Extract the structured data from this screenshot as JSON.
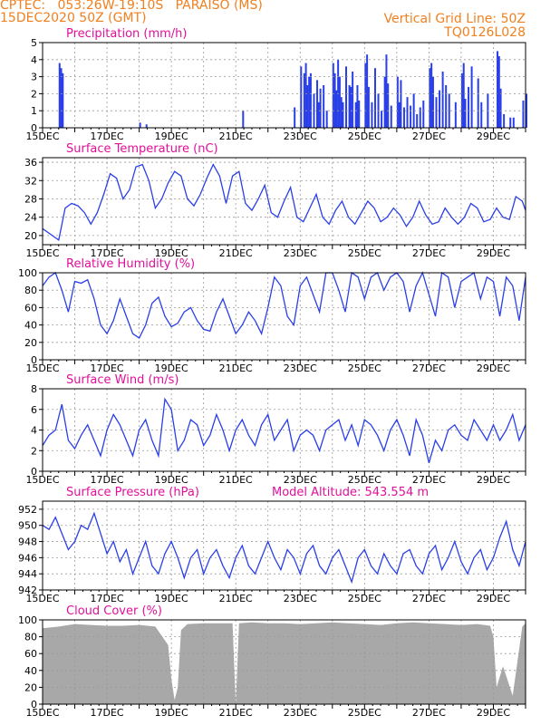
{
  "header": {
    "line1": "CPTEC:   053:26W-19:10S   PARAISO (MS)",
    "line2": "15DEC2020 50Z (GMT)",
    "right1": "Vertical Grid Line: 50Z",
    "right2": "TQ0126L028"
  },
  "colors": {
    "header": "#f08020",
    "title": "#e0109a",
    "line": "#2a3fe8",
    "cloud": "#a8a8a8"
  },
  "chart_data": [
    {
      "type": "bar",
      "title": "Precipitation (mm/h)",
      "xlabels": [
        "15DEC",
        "17DEC",
        "19DEC",
        "21DEC",
        "23DEC",
        "25DEC",
        "27DEC",
        "29DEC"
      ],
      "x_start_label": "15DEC",
      "ylim": [
        0,
        5
      ],
      "yticks": [
        0,
        1,
        2,
        3,
        4,
        5
      ],
      "grid": true,
      "x_days": [
        0.5,
        0.55,
        0.6,
        3.0,
        3.2,
        6.2,
        7.8,
        8.0,
        8.1,
        8.15,
        8.2,
        8.25,
        8.3,
        8.4,
        8.5,
        8.55,
        8.6,
        8.7,
        8.8,
        9.0,
        9.05,
        9.1,
        9.15,
        9.2,
        9.25,
        9.3,
        9.4,
        9.5,
        9.55,
        9.6,
        9.7,
        9.75,
        9.8,
        10.0,
        10.05,
        10.1,
        10.2,
        10.3,
        10.4,
        10.5,
        10.6,
        10.65,
        10.7,
        10.8,
        11.0,
        11.05,
        11.1,
        11.2,
        11.3,
        11.4,
        11.5,
        11.6,
        11.7,
        11.8,
        12.0,
        12.05,
        12.1,
        12.2,
        12.3,
        12.4,
        12.5,
        12.6,
        12.8,
        13.0,
        13.05,
        13.1,
        13.2,
        13.3,
        13.5,
        13.6,
        13.8,
        14.1,
        14.15,
        14.2,
        14.3,
        14.5,
        14.6,
        14.9,
        15.0
      ],
      "values": [
        3.8,
        3.5,
        3.2,
        0.3,
        0.2,
        1.0,
        1.2,
        3.6,
        3.2,
        3.8,
        2.5,
        3.0,
        3.2,
        2.0,
        2.8,
        1.5,
        2.3,
        2.5,
        1.0,
        3.8,
        3.2,
        2.2,
        4.0,
        3.0,
        1.8,
        1.5,
        3.6,
        2.5,
        2.4,
        3.3,
        1.5,
        2.5,
        1.6,
        3.8,
        4.3,
        2.4,
        1.5,
        3.5,
        2.0,
        1.0,
        3.0,
        4.3,
        2.6,
        1.3,
        3.0,
        1.5,
        2.8,
        1.2,
        1.8,
        1.3,
        2.0,
        0.8,
        1.2,
        1.6,
        3.5,
        3.8,
        3.0,
        1.8,
        2.2,
        3.3,
        2.5,
        2.0,
        1.5,
        3.2,
        3.8,
        1.7,
        2.4,
        3.6,
        2.9,
        1.5,
        2.0,
        4.5,
        4.2,
        2.3,
        0.8,
        0.6,
        0.6,
        1.6,
        2.0
      ]
    },
    {
      "type": "line",
      "title": "Surface Temperature (nC)",
      "xlabels": [
        "15DEC",
        "17DEC",
        "19DEC",
        "21DEC",
        "23DEC",
        "25DEC",
        "27DEC",
        "29DEC"
      ],
      "x_start_label": "15DEC",
      "ylim": [
        18,
        37
      ],
      "yticks": [
        20,
        24,
        28,
        32,
        36
      ],
      "grid": true,
      "x_days": [
        0,
        0.3,
        0.5,
        0.7,
        0.9,
        1.1,
        1.3,
        1.5,
        1.7,
        1.9,
        2.1,
        2.3,
        2.5,
        2.7,
        2.9,
        3.1,
        3.3,
        3.5,
        3.7,
        3.9,
        4.1,
        4.3,
        4.5,
        4.7,
        4.9,
        5.1,
        5.3,
        5.5,
        5.7,
        5.9,
        6.1,
        6.3,
        6.5,
        6.7,
        6.9,
        7.1,
        7.3,
        7.5,
        7.7,
        7.9,
        8.1,
        8.3,
        8.5,
        8.7,
        8.9,
        9.1,
        9.3,
        9.5,
        9.7,
        9.9,
        10.1,
        10.3,
        10.5,
        10.7,
        10.9,
        11.1,
        11.3,
        11.5,
        11.7,
        11.9,
        12.1,
        12.3,
        12.5,
        12.7,
        12.9,
        13.1,
        13.3,
        13.5,
        13.7,
        13.9,
        14.1,
        14.3,
        14.5,
        14.7,
        14.9,
        15.0
      ],
      "values": [
        21.5,
        20,
        19,
        26,
        27,
        26.5,
        25,
        22.5,
        25,
        29,
        33.5,
        32.5,
        28,
        30,
        35,
        35.5,
        32,
        26,
        28,
        31.5,
        34,
        33,
        28,
        26.5,
        29,
        32.5,
        35.5,
        33,
        27,
        33,
        34,
        27,
        25.5,
        28,
        31,
        25,
        24,
        27.5,
        30.5,
        24,
        23,
        26,
        29,
        24,
        22.5,
        25.5,
        27.5,
        24,
        22.5,
        25,
        27.5,
        26,
        23,
        24,
        26,
        24.5,
        22,
        24,
        27.5,
        24.5,
        22.5,
        23,
        26,
        24,
        22.5,
        24,
        27,
        26,
        23,
        23.5,
        26,
        24,
        23.5,
        28.5,
        27.5,
        25.5
      ]
    },
    {
      "type": "line",
      "title": "Relative Humidity (%)",
      "xlabels": [
        "15DEC",
        "17DEC",
        "19DEC",
        "21DEC",
        "23DEC",
        "25DEC",
        "27DEC",
        "29DEC"
      ],
      "x_start_label": "15DEC",
      "ylim": [
        0,
        100
      ],
      "yticks": [
        0,
        20,
        40,
        60,
        80,
        100
      ],
      "grid": true,
      "x_days": [
        0,
        0.2,
        0.4,
        0.6,
        0.8,
        1.0,
        1.2,
        1.4,
        1.6,
        1.8,
        2.0,
        2.2,
        2.4,
        2.6,
        2.8,
        3.0,
        3.2,
        3.4,
        3.6,
        3.8,
        4.0,
        4.2,
        4.4,
        4.6,
        4.8,
        5.0,
        5.2,
        5.4,
        5.6,
        5.8,
        6.0,
        6.2,
        6.4,
        6.6,
        6.8,
        7.0,
        7.2,
        7.4,
        7.6,
        7.8,
        8.0,
        8.2,
        8.4,
        8.6,
        8.8,
        9.0,
        9.2,
        9.4,
        9.6,
        9.8,
        10.0,
        10.2,
        10.4,
        10.6,
        10.8,
        11.0,
        11.2,
        11.4,
        11.6,
        11.8,
        12.0,
        12.2,
        12.4,
        12.6,
        12.8,
        13.0,
        13.2,
        13.4,
        13.6,
        13.8,
        14.0,
        14.2,
        14.4,
        14.6,
        14.8,
        15.0
      ],
      "values": [
        85,
        95,
        100,
        80,
        55,
        90,
        88,
        92,
        70,
        40,
        30,
        45,
        70,
        50,
        30,
        25,
        40,
        65,
        72,
        50,
        38,
        42,
        55,
        60,
        45,
        35,
        33,
        55,
        70,
        50,
        30,
        40,
        55,
        45,
        30,
        60,
        95,
        85,
        50,
        40,
        85,
        95,
        75,
        55,
        100,
        100,
        80,
        55,
        100,
        95,
        70,
        95,
        100,
        80,
        95,
        100,
        90,
        55,
        85,
        100,
        75,
        50,
        100,
        95,
        60,
        90,
        95,
        100,
        70,
        95,
        90,
        50,
        95,
        85,
        45,
        95
      ]
    },
    {
      "type": "line",
      "title": "Surface Wind (m/s)",
      "xlabels": [
        "15DEC",
        "17DEC",
        "19DEC",
        "21DEC",
        "23DEC",
        "25DEC",
        "27DEC",
        "29DEC"
      ],
      "x_start_label": "15DEC",
      "ylim": [
        0,
        8
      ],
      "yticks": [
        0,
        2,
        4,
        6,
        8
      ],
      "grid": true,
      "x_days": [
        0,
        0.2,
        0.4,
        0.6,
        0.8,
        1.0,
        1.2,
        1.4,
        1.6,
        1.8,
        2.0,
        2.2,
        2.4,
        2.6,
        2.8,
        3.0,
        3.2,
        3.4,
        3.6,
        3.8,
        4.0,
        4.2,
        4.4,
        4.6,
        4.8,
        5.0,
        5.2,
        5.4,
        5.6,
        5.8,
        6.0,
        6.2,
        6.4,
        6.6,
        6.8,
        7.0,
        7.2,
        7.4,
        7.6,
        7.8,
        8.0,
        8.2,
        8.4,
        8.6,
        8.8,
        9.0,
        9.2,
        9.4,
        9.6,
        9.8,
        10.0,
        10.2,
        10.4,
        10.6,
        10.8,
        11.0,
        11.2,
        11.4,
        11.6,
        11.8,
        12.0,
        12.2,
        12.4,
        12.6,
        12.8,
        13.0,
        13.2,
        13.4,
        13.6,
        13.8,
        14.0,
        14.2,
        14.4,
        14.6,
        14.8,
        15.0
      ],
      "values": [
        2.5,
        3.5,
        4,
        6.5,
        3,
        2.2,
        3.5,
        4.5,
        3,
        1.5,
        4,
        5.5,
        4.5,
        3,
        1.5,
        4,
        5,
        3,
        1.5,
        7,
        6,
        2,
        3,
        5,
        4.5,
        2.5,
        3.5,
        5.5,
        4,
        2,
        4,
        5,
        3.5,
        2.5,
        4.5,
        5.5,
        3,
        4,
        5,
        2,
        3.5,
        4,
        3.5,
        2,
        4,
        4.5,
        5,
        3,
        4.5,
        2.5,
        5,
        4.5,
        3.5,
        2,
        4,
        5,
        3.5,
        1.5,
        5,
        3.5,
        0.8,
        3,
        2,
        4,
        4.5,
        3.5,
        3,
        5,
        4,
        3,
        4.5,
        3,
        4,
        5.5,
        3,
        4.5
      ]
    },
    {
      "type": "line",
      "title": "Surface Pressure (hPa)",
      "annotation": "Model Altitude: 543.554  m",
      "xlabels": [
        "15DEC",
        "17DEC",
        "19DEC",
        "21DEC",
        "23DEC",
        "25DEC",
        "27DEC",
        "29DEC"
      ],
      "x_start_label": "15DEC",
      "ylim": [
        942,
        953
      ],
      "yticks": [
        942,
        944,
        946,
        948,
        950,
        952
      ],
      "grid": true,
      "x_days": [
        0,
        0.2,
        0.4,
        0.6,
        0.8,
        1.0,
        1.2,
        1.4,
        1.6,
        1.8,
        2.0,
        2.2,
        2.4,
        2.6,
        2.8,
        3.0,
        3.2,
        3.4,
        3.6,
        3.8,
        4.0,
        4.2,
        4.4,
        4.6,
        4.8,
        5.0,
        5.2,
        5.4,
        5.6,
        5.8,
        6.0,
        6.2,
        6.4,
        6.6,
        6.8,
        7.0,
        7.2,
        7.4,
        7.6,
        7.8,
        8.0,
        8.2,
        8.4,
        8.6,
        8.8,
        9.0,
        9.2,
        9.4,
        9.6,
        9.8,
        10.0,
        10.2,
        10.4,
        10.6,
        10.8,
        11.0,
        11.2,
        11.4,
        11.6,
        11.8,
        12.0,
        12.2,
        12.4,
        12.6,
        12.8,
        13.0,
        13.2,
        13.4,
        13.6,
        13.8,
        14.0,
        14.2,
        14.4,
        14.6,
        14.8,
        15.0
      ],
      "values": [
        950,
        949.5,
        951,
        949,
        947,
        948,
        950,
        949.5,
        951.5,
        949,
        946.5,
        948,
        945.5,
        947,
        944,
        946,
        948,
        945,
        944,
        946.5,
        948,
        946,
        943.5,
        946,
        947,
        944,
        946,
        947,
        945,
        943.5,
        946,
        947.5,
        945,
        944,
        946,
        948,
        946,
        944.5,
        947,
        946,
        944,
        946.5,
        947.5,
        945,
        944,
        946,
        947,
        945,
        943,
        946,
        947,
        945,
        944,
        946.5,
        945,
        944,
        946.5,
        947,
        945,
        944,
        946.5,
        947.5,
        944.5,
        946,
        948,
        945.5,
        944,
        946,
        947,
        944.5,
        946,
        948.5,
        950.5,
        947,
        945,
        948
      ]
    },
    {
      "type": "area",
      "title": "Cloud Cover (%)",
      "xlabels": [
        "15DEC",
        "17DEC",
        "19DEC",
        "21DEC",
        "23DEC",
        "25DEC",
        "27DEC",
        "29DEC"
      ],
      "x_start_label": "15DEC",
      "ylim": [
        0,
        100
      ],
      "yticks": [
        0,
        20,
        40,
        60,
        80,
        100
      ],
      "grid": true,
      "x_days": [
        0,
        0.5,
        1.0,
        1.5,
        2.0,
        2.5,
        3.0,
        3.5,
        3.9,
        4.0,
        4.1,
        4.2,
        4.3,
        4.5,
        5.0,
        5.5,
        5.9,
        6.0,
        6.1,
        6.5,
        7.0,
        7.5,
        8.0,
        8.5,
        9.0,
        9.5,
        10.0,
        10.5,
        11.0,
        11.5,
        12.0,
        12.5,
        13.0,
        13.5,
        13.9,
        14.0,
        14.1,
        14.3,
        14.6,
        14.9,
        15.0
      ],
      "values": [
        90,
        92,
        95,
        94,
        93,
        93,
        94,
        92,
        70,
        30,
        5,
        20,
        88,
        95,
        96,
        96,
        96,
        0,
        96,
        97,
        96,
        96,
        95,
        96,
        97,
        96,
        95,
        94,
        96,
        97,
        96,
        95,
        94,
        95,
        93,
        80,
        20,
        45,
        10,
        92,
        96
      ]
    }
  ]
}
